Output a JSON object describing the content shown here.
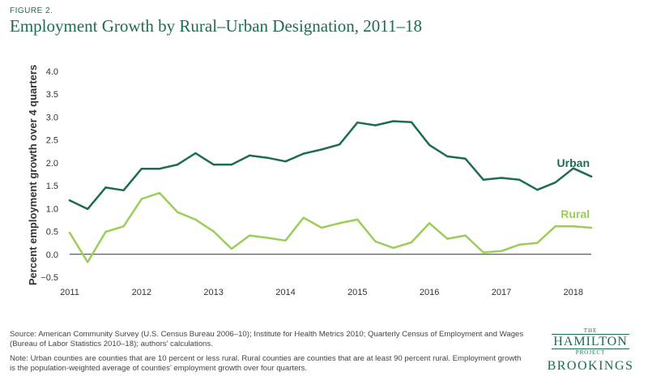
{
  "figure_label": "FIGURE 2.",
  "title": "Employment Growth by Rural–Urban Designation, 2011–18",
  "source": "Source: American Community Survey (U.S. Census Bureau 2006–10); Institute for Health Metrics 2010; Quarterly Census of Employment and Wages (Bureau of Labor Statistics 2010–18); authors’ calculations.",
  "note": "Note: Urban counties are counties that are 10 percent or less rural. Rural counties are counties that are at least 90 percent rural. Employment growth is the population-weighted average of counties’ employment growth over four quarters.",
  "logo": {
    "the": "THE",
    "hamilton": "HAMILTON",
    "project": "PROJECT",
    "brookings": "BROOKINGS"
  },
  "colors": {
    "title": "#1d6b57",
    "urban": "#1d6b57",
    "rural": "#9acd5a",
    "axis": "#333333"
  },
  "chart_data": {
    "type": "line",
    "xlabel": "",
    "ylabel": "Percent employment growth over 4 quarters",
    "ylim": [
      -0.5,
      4.0
    ],
    "xlim": [
      2011,
      2018.25
    ],
    "yticks": [
      "4.0",
      "3.5",
      "3.0",
      "2.5",
      "2.0",
      "1.5",
      "1.0",
      "0.5",
      "0.0",
      "−0.5"
    ],
    "ytick_values": [
      4.0,
      3.5,
      3.0,
      2.5,
      2.0,
      1.5,
      1.0,
      0.5,
      0.0,
      -0.5
    ],
    "xticks": [
      "2011",
      "2012",
      "2013",
      "2014",
      "2015",
      "2016",
      "2017",
      "2018"
    ],
    "xtick_values": [
      2011,
      2012,
      2013,
      2014,
      2015,
      2016,
      2017,
      2018
    ],
    "zero_line": true,
    "grid": false,
    "x": [
      2011,
      2011.25,
      2011.5,
      2011.75,
      2012,
      2012.25,
      2012.5,
      2012.75,
      2013,
      2013.25,
      2013.5,
      2013.75,
      2014,
      2014.25,
      2014.5,
      2014.75,
      2015,
      2015.25,
      2015.5,
      2015.75,
      2016,
      2016.25,
      2016.5,
      2016.75,
      2017,
      2017.25,
      2017.5,
      2017.75,
      2018,
      2018.25
    ],
    "series": [
      {
        "name": "Urban",
        "values": [
          1.18,
          0.99,
          1.46,
          1.4,
          1.87,
          1.87,
          1.96,
          2.21,
          1.96,
          1.96,
          2.16,
          2.11,
          2.03,
          2.2,
          2.29,
          2.4,
          2.88,
          2.82,
          2.91,
          2.89,
          2.39,
          2.14,
          2.09,
          1.63,
          1.67,
          1.63,
          1.41,
          1.57,
          1.88,
          1.7
        ]
      },
      {
        "name": "Rural",
        "values": [
          0.47,
          -0.17,
          0.49,
          0.61,
          1.21,
          1.34,
          0.92,
          0.76,
          0.5,
          0.12,
          0.41,
          0.36,
          0.3,
          0.8,
          0.58,
          0.68,
          0.76,
          0.28,
          0.14,
          0.26,
          0.68,
          0.34,
          0.41,
          0.04,
          0.07,
          0.21,
          0.25,
          0.61,
          0.61,
          0.58
        ]
      }
    ]
  }
}
